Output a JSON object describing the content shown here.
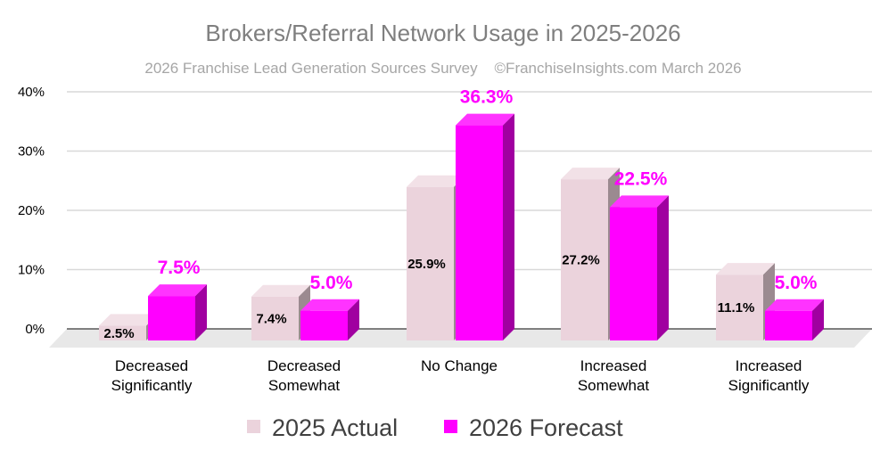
{
  "chart_data": {
    "type": "bar",
    "title": "Brokers/Referral Network Usage in 2025-2026",
    "subtitle": "2026 Franchise Lead Generation Sources Survey    ©FranchiseInsights.com March 2026",
    "categories": [
      [
        "Decreased",
        "Significantly"
      ],
      [
        "Decreased",
        "Somewhat"
      ],
      [
        "No Change"
      ],
      [
        "Increased",
        "Somewhat"
      ],
      [
        "Increased",
        "Significantly"
      ]
    ],
    "series": [
      {
        "name": "2025 Actual",
        "color": "#ebd3dc",
        "side_color": "#9b8a90",
        "top_color": "#f2e1e7",
        "values": [
          2.5,
          7.4,
          25.9,
          27.2,
          11.1
        ],
        "labels": [
          "2.5%",
          "7.4%",
          "25.9%",
          "27.2%",
          "11.1%"
        ]
      },
      {
        "name": "2026 Forecast",
        "color": "#ff00ff",
        "side_color": "#a000a0",
        "top_color": "#ff33ff",
        "values": [
          7.5,
          5.0,
          36.3,
          22.5,
          5.0
        ],
        "labels": [
          "7.5%",
          "5.0%",
          "36.3%",
          "22.5%",
          "5.0%"
        ]
      }
    ],
    "yticks": [
      "0%",
      "10%",
      "20%",
      "30%",
      "40%"
    ],
    "ylim": [
      0,
      40
    ],
    "grid": true,
    "legend": "bottom"
  }
}
